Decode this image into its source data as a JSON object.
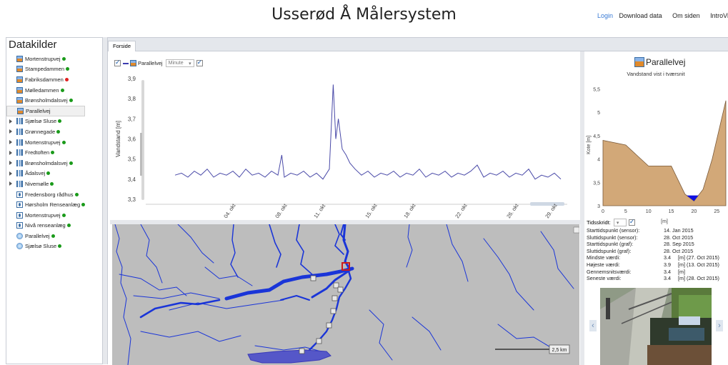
{
  "header": {
    "title": "Usserød Å Målersystem",
    "nav": [
      {
        "label": "Login",
        "accent": "#3a7bd5"
      },
      {
        "label": "Download data"
      },
      {
        "label": "Om siden"
      },
      {
        "label": "IntroVideo"
      }
    ]
  },
  "sidebar": {
    "title": "Datakilder",
    "items": [
      {
        "label": "Mortenstrupvej",
        "icon": "dam-icon",
        "status": "#1a9a1a",
        "expandable": false
      },
      {
        "label": "Stampedammen",
        "icon": "dam-icon",
        "status": "#1a9a1a",
        "expandable": false
      },
      {
        "label": "Fabriksdammen",
        "icon": "dam-icon",
        "status": "#e02020",
        "expandable": false
      },
      {
        "label": "Mølledammen",
        "icon": "dam-icon",
        "status": "#1a9a1a",
        "expandable": false
      },
      {
        "label": "Brønsholmdalsvej",
        "icon": "dam-icon",
        "status": "#1a9a1a",
        "expandable": false
      },
      {
        "label": "Parallelvej",
        "icon": "dam-icon",
        "status": "",
        "expandable": false,
        "selected": true
      },
      {
        "label": "Sjælsø Sluse",
        "icon": "bar-chart-icon",
        "status": "#1a9a1a",
        "expandable": true
      },
      {
        "label": "Grønnegade",
        "icon": "bar-chart-icon",
        "status": "#1a9a1a",
        "expandable": true
      },
      {
        "label": "Mortenstrupvej",
        "icon": "bar-chart-icon",
        "status": "#1a9a1a",
        "expandable": true
      },
      {
        "label": "Fredtoften",
        "icon": "bar-chart-icon",
        "status": "#1a9a1a",
        "expandable": true
      },
      {
        "label": "Brønsholmdalsvej",
        "icon": "bar-chart-icon",
        "status": "#1a9a1a",
        "expandable": true
      },
      {
        "label": "Ådalsvej",
        "icon": "bar-chart-icon",
        "status": "#1a9a1a",
        "expandable": true
      },
      {
        "label": "Nivemølle",
        "icon": "bar-chart-icon",
        "status": "#1a9a1a",
        "expandable": true
      },
      {
        "label": "Fredensborg rådhus",
        "icon": "rain-gauge-icon",
        "status": "#1a9a1a",
        "expandable": false
      },
      {
        "label": "Hørsholm Renseanlæg",
        "icon": "rain-gauge-icon",
        "status": "#1a9a1a",
        "expandable": false
      },
      {
        "label": "Mortenstrupvej",
        "icon": "rain-gauge-icon",
        "status": "#1a9a1a",
        "expandable": false
      },
      {
        "label": "Nivå renseanlæg",
        "icon": "rain-gauge-icon",
        "status": "#1a9a1a",
        "expandable": false
      },
      {
        "label": "Parallelvej",
        "icon": "weather-icon",
        "status": "#1a9a1a",
        "expandable": false
      },
      {
        "label": "Sjælsø Sluse",
        "icon": "weather-icon",
        "status": "#1a9a1a",
        "expandable": false
      }
    ]
  },
  "tabs": [
    {
      "label": "Forside"
    }
  ],
  "chart_toolbar": {
    "series_label": "Parallelvej",
    "interval": "Minute"
  },
  "map": {
    "scale_label": "2,5 km"
  },
  "detail": {
    "title": "Parallelvej",
    "tidsskridt_label": "Tidsskridt:",
    "stats": [
      {
        "key": "Starttidspunkt (sensor):",
        "value": "14. Jan 2015"
      },
      {
        "key": "Sluttidspunkt (sensor):",
        "value": "28. Oct 2015"
      },
      {
        "key": "Starttidspunkt (graf):",
        "value": "28. Sep 2015"
      },
      {
        "key": "Sluttidspunkt (graf):",
        "value": "28. Oct 2015"
      },
      {
        "key": "Mindste værdi:",
        "value": "3.4",
        "unit": "[m] (27. Oct 2015)"
      },
      {
        "key": "Højeste værdi:",
        "value": "3.9",
        "unit": "[m] (13. Oct 2015)"
      },
      {
        "key": "Gennemsnitsværdi:",
        "value": "3.4",
        "unit": "[m]"
      },
      {
        "key": "Seneste værdi:",
        "value": "3.4",
        "unit": "[m] (28. Oct 2015)"
      }
    ],
    "nav_prev": "‹",
    "nav_next": "›"
  },
  "chart_data": [
    {
      "type": "line",
      "title": "",
      "xlabel": "",
      "ylabel": "Vandstand [m]",
      "ylim": [
        3.3,
        3.9
      ],
      "yticks": [
        "3,3",
        "3,4",
        "3,5",
        "3,6",
        "3,7",
        "3,8",
        "3,9"
      ],
      "xticks": [
        "04. okt",
        "08. okt",
        "11. okt",
        "15. okt",
        "18. okt",
        "22. okt",
        "26. okt",
        "29. okt"
      ],
      "xtick_days": [
        4,
        8,
        11,
        15,
        18,
        22,
        26,
        29
      ],
      "xlim_days": [
        28.5,
        30.3
      ],
      "series": [
        {
          "color": "#4a4aa8",
          "x_days": [
            0.0,
            0.5,
            1.0,
            1.5,
            2.0,
            2.5,
            3.0,
            3.5,
            4.0,
            4.5,
            5.0,
            5.5,
            6.0,
            6.5,
            7.0,
            7.5,
            8.0,
            8.3,
            8.5,
            9.0,
            9.5,
            10.0,
            10.5,
            11.0,
            11.5,
            12.0,
            12.3,
            12.5,
            12.7,
            13.0,
            13.3,
            13.6,
            14.0,
            14.5,
            15.0,
            15.5,
            16.0,
            16.5,
            17.0,
            17.5,
            18.0,
            18.5,
            19.0,
            19.5,
            20.0,
            20.5,
            21.0,
            21.5,
            22.0,
            22.5,
            23.0,
            23.5,
            24.0,
            24.5,
            25.0,
            25.5,
            26.0,
            26.5,
            27.0,
            27.5,
            28.0,
            28.5,
            29.0,
            29.5,
            30.0
          ],
          "values": [
            3.42,
            3.43,
            3.41,
            3.44,
            3.42,
            3.45,
            3.41,
            3.43,
            3.42,
            3.44,
            3.41,
            3.45,
            3.42,
            3.43,
            3.41,
            3.44,
            3.42,
            3.52,
            3.41,
            3.43,
            3.42,
            3.44,
            3.41,
            3.43,
            3.4,
            3.45,
            3.87,
            3.6,
            3.7,
            3.55,
            3.52,
            3.48,
            3.45,
            3.42,
            3.44,
            3.41,
            3.43,
            3.42,
            3.44,
            3.41,
            3.43,
            3.42,
            3.45,
            3.41,
            3.43,
            3.42,
            3.44,
            3.41,
            3.43,
            3.42,
            3.44,
            3.47,
            3.41,
            3.43,
            3.42,
            3.44,
            3.41,
            3.43,
            3.42,
            3.45,
            3.4,
            3.42,
            3.41,
            3.43,
            3.4
          ]
        }
      ]
    },
    {
      "type": "area",
      "title": "Vandstand vist i tværsnit",
      "xlabel": "[m]",
      "ylabel": "Kote [m]",
      "xlim": [
        0,
        27
      ],
      "ylim": [
        3,
        5.6
      ],
      "xticks": [
        "0",
        "5",
        "10",
        "15",
        "20",
        "25"
      ],
      "yticks": [
        "3",
        "3,5",
        "4",
        "4,5",
        "5",
        "5,5"
      ],
      "series": [
        {
          "name": "",
          "color": "#d2a878",
          "x": [
            0,
            5,
            10,
            15,
            18,
            20,
            22,
            24,
            27
          ],
          "values": [
            4.4,
            4.3,
            3.85,
            3.85,
            3.25,
            3.1,
            3.35,
            4.0,
            5.25
          ]
        },
        {
          "name": "",
          "color": "#1010e0",
          "water_level": 3.22
        }
      ]
    }
  ]
}
